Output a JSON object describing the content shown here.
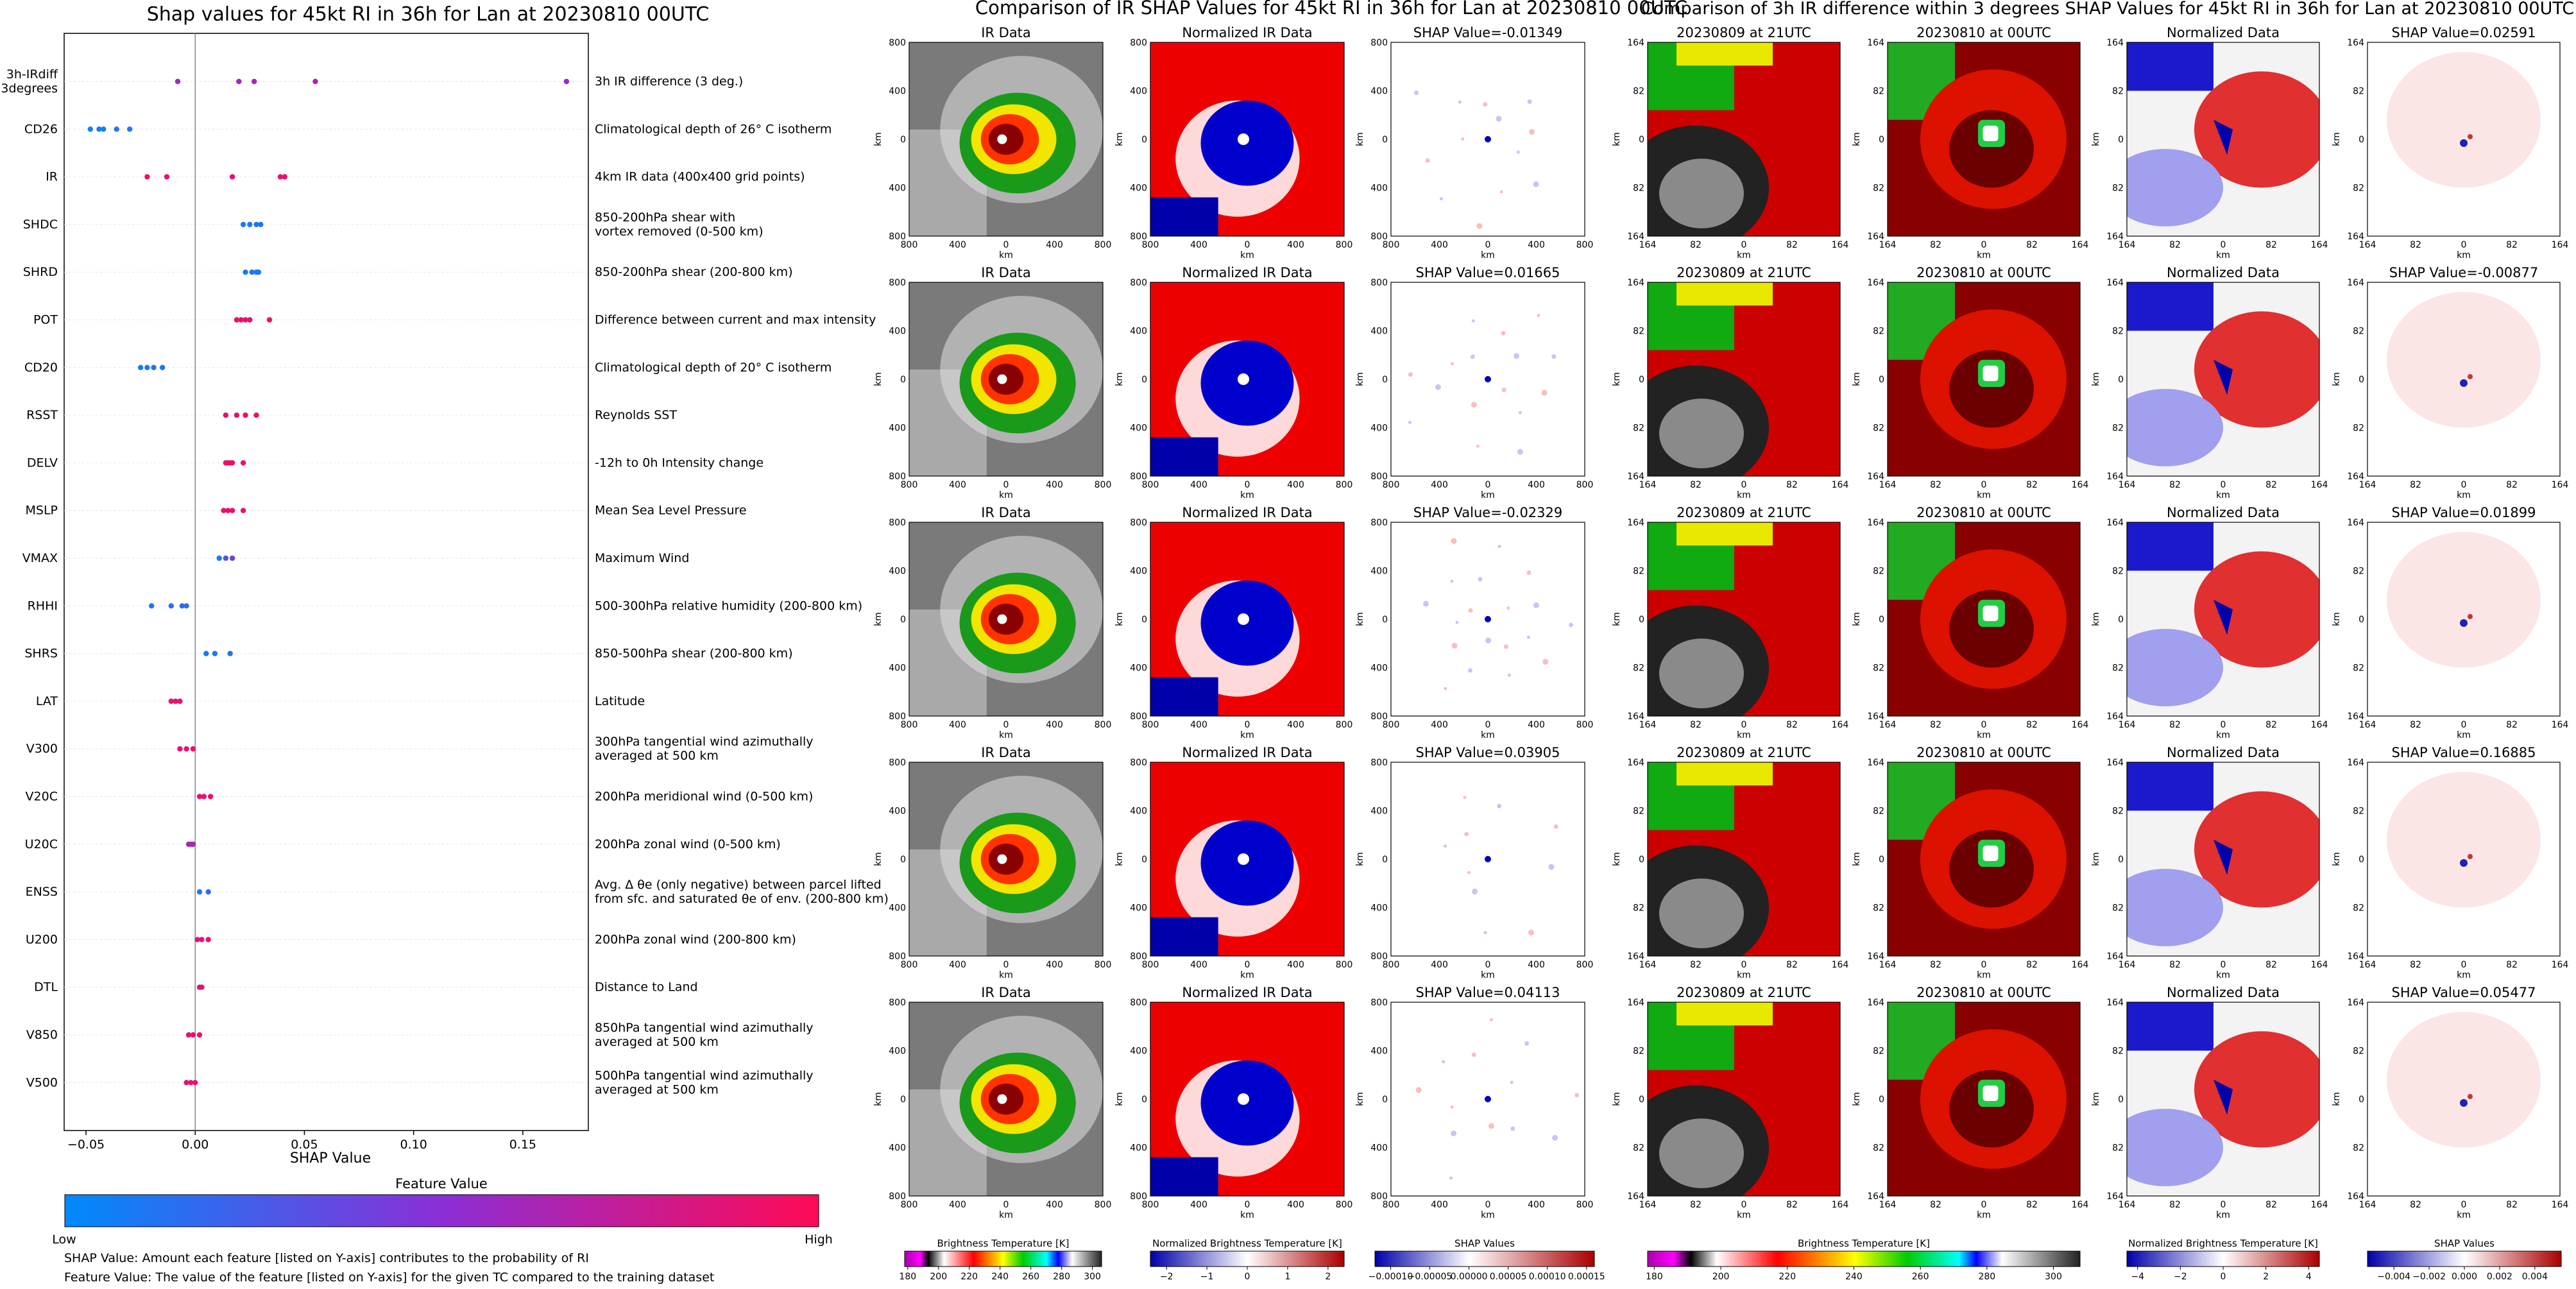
{
  "left": {
    "title": "Shap values for 45kt RI in 36h for Lan at 20230810 00UTC",
    "xlabel": "SHAP Value",
    "xticks": [
      "−0.05",
      "0.00",
      "0.05",
      "0.10",
      "0.15"
    ],
    "colorbar": {
      "title": "Feature Value",
      "low": "Low",
      "high": "High",
      "low_color": "#008afb",
      "mid_color": "#8b2fd6",
      "high_color": "#ff0a55"
    },
    "notes": [
      "SHAP Value: Amount each feature [listed on Y-axis] contributes to the probability of RI",
      "Feature Value: The value of the feature [listed on Y-axis] for the given TC compared to the training dataset"
    ]
  },
  "chart_data": [
    {
      "type": "scatter",
      "title": "Shap values for 45kt RI in 36h for Lan at 20230810 00UTC",
      "xlabel": "SHAP Value",
      "xlim": [
        -0.06,
        0.18
      ],
      "legend": "colorbar bottom",
      "features": [
        {
          "name": "3h-IRdiff\n3degrees",
          "desc": "3h IR difference (3 deg.)",
          "points": [
            [
              -0.008,
              0.55
            ],
            [
              0.02,
              0.6
            ],
            [
              0.027,
              0.62
            ],
            [
              0.055,
              0.65
            ],
            [
              0.17,
              0.55
            ]
          ]
        },
        {
          "name": "CD26",
          "desc": "Climatological depth of 26° C isotherm",
          "points": [
            [
              -0.048,
              0.05
            ],
            [
              -0.044,
              0.08
            ],
            [
              -0.042,
              0.06
            ],
            [
              -0.036,
              0.1
            ],
            [
              -0.03,
              0.12
            ]
          ]
        },
        {
          "name": "IR",
          "desc": "4km IR data (400x400 grid points)",
          "points": [
            [
              -0.022,
              0.95
            ],
            [
              -0.013,
              0.9
            ],
            [
              0.017,
              0.88
            ],
            [
              0.039,
              0.92
            ],
            [
              0.041,
              0.9
            ]
          ]
        },
        {
          "name": "SHDC",
          "desc": "850-200hPa shear with\nvortex removed (0-500 km)",
          "points": [
            [
              0.022,
              0.1
            ],
            [
              0.025,
              0.08
            ],
            [
              0.028,
              0.12
            ],
            [
              0.03,
              0.1
            ]
          ]
        },
        {
          "name": "SHRD",
          "desc": "850-200hPa shear (200-800 km)",
          "points": [
            [
              0.023,
              0.1
            ],
            [
              0.026,
              0.12
            ],
            [
              0.028,
              0.08
            ],
            [
              0.029,
              0.1
            ]
          ]
        },
        {
          "name": "POT",
          "desc": "Difference between current and max intensity",
          "points": [
            [
              0.019,
              0.92
            ],
            [
              0.021,
              0.9
            ],
            [
              0.023,
              0.88
            ],
            [
              0.025,
              0.9
            ],
            [
              0.034,
              0.95
            ]
          ]
        },
        {
          "name": "CD20",
          "desc": "Climatological depth of 20° C isotherm",
          "points": [
            [
              -0.025,
              0.08
            ],
            [
              -0.022,
              0.1
            ],
            [
              -0.019,
              0.12
            ],
            [
              -0.015,
              0.1
            ]
          ]
        },
        {
          "name": "RSST",
          "desc": "Reynolds SST",
          "points": [
            [
              0.014,
              0.92
            ],
            [
              0.019,
              0.9
            ],
            [
              0.023,
              0.95
            ],
            [
              0.028,
              0.9
            ]
          ]
        },
        {
          "name": "DELV",
          "desc": "-12h to 0h Intensity change",
          "points": [
            [
              0.014,
              0.95
            ],
            [
              0.015,
              0.92
            ],
            [
              0.016,
              0.9
            ],
            [
              0.017,
              0.93
            ],
            [
              0.022,
              0.9
            ]
          ]
        },
        {
          "name": "MSLP",
          "desc": "Mean Sea Level Pressure",
          "points": [
            [
              0.013,
              0.92
            ],
            [
              0.015,
              0.9
            ],
            [
              0.017,
              0.95
            ],
            [
              0.022,
              0.9
            ]
          ]
        },
        {
          "name": "VMAX",
          "desc": "Maximum Wind",
          "points": [
            [
              0.011,
              0.1
            ],
            [
              0.014,
              0.3
            ],
            [
              0.017,
              0.4
            ]
          ]
        },
        {
          "name": "RHHI",
          "desc": "500-300hPa relative humidity (200-800 km)",
          "points": [
            [
              -0.02,
              0.1
            ],
            [
              -0.011,
              0.15
            ],
            [
              -0.006,
              0.2
            ],
            [
              -0.004,
              0.15
            ]
          ]
        },
        {
          "name": "SHRS",
          "desc": "850-500hPa shear (200-800 km)",
          "points": [
            [
              0.005,
              0.1
            ],
            [
              0.009,
              0.12
            ],
            [
              0.016,
              0.15
            ]
          ]
        },
        {
          "name": "LAT",
          "desc": "Latitude",
          "points": [
            [
              -0.011,
              0.9
            ],
            [
              -0.009,
              0.95
            ],
            [
              -0.007,
              0.92
            ]
          ]
        },
        {
          "name": "V300",
          "desc": "300hPa tangential wind azimuthally\naveraged at 500 km",
          "points": [
            [
              -0.007,
              0.9
            ],
            [
              -0.004,
              0.88
            ],
            [
              -0.001,
              0.95
            ]
          ]
        },
        {
          "name": "V20C",
          "desc": "200hPa meridional wind (0-500 km)",
          "points": [
            [
              0.002,
              0.9
            ],
            [
              0.004,
              0.85
            ],
            [
              0.007,
              0.92
            ]
          ]
        },
        {
          "name": "U20C",
          "desc": "200hPa zonal wind (0-500 km)",
          "points": [
            [
              -0.003,
              0.6
            ],
            [
              -0.002,
              0.65
            ],
            [
              -0.001,
              0.62
            ]
          ]
        },
        {
          "name": "ENSS",
          "desc": "Avg. Δ θe (only negative) between parcel lifted\nfrom sfc. and saturated θe of env. (200-800 km)",
          "points": [
            [
              0.002,
              0.1
            ],
            [
              0.006,
              0.15
            ]
          ]
        },
        {
          "name": "U200",
          "desc": "200hPa zonal wind (200-800 km)",
          "points": [
            [
              0.001,
              0.9
            ],
            [
              0.003,
              0.85
            ],
            [
              0.006,
              0.9
            ]
          ]
        },
        {
          "name": "DTL",
          "desc": "Distance to Land",
          "points": [
            [
              0.002,
              0.9
            ],
            [
              0.003,
              0.88
            ]
          ]
        },
        {
          "name": "V850",
          "desc": "850hPa tangential wind azimuthally\naveraged at 500 km",
          "points": [
            [
              -0.003,
              0.9
            ],
            [
              -0.001,
              0.88
            ],
            [
              0.002,
              0.92
            ]
          ]
        },
        {
          "name": "V500",
          "desc": "500hPa tangential wind azimuthally\naveraged at 500 km",
          "points": [
            [
              -0.004,
              0.85
            ],
            [
              -0.002,
              0.9
            ],
            [
              0.0,
              0.88
            ]
          ]
        }
      ]
    },
    {
      "type": "heatmap",
      "title": "Comparison of IR SHAP Values for 45kt RI in 36h for Lan at 20230810 00UTC",
      "panel_titles": [
        "IR Data",
        "Normalized IR Data"
      ],
      "shap_values": [
        "-0.01349",
        "0.01665",
        "-0.02329",
        "0.03905",
        "0.04113"
      ],
      "ticks": [
        "800",
        "400",
        "0",
        "400",
        "800"
      ],
      "axis_label": "km",
      "colorbars": [
        {
          "label": "Brightness Temperature [K]",
          "ticks": [
            "180",
            "200",
            "220",
            "240",
            "260",
            "280",
            "300"
          ],
          "range": [
            178,
            306
          ]
        },
        {
          "label": "Normalized Brightness Temperature [K]",
          "ticks": [
            "−2",
            "−1",
            "0",
            "1",
            "2"
          ],
          "range": [
            -2.4,
            2.4
          ]
        },
        {
          "label": "SHAP Values",
          "ticks": [
            "−0.00010",
            "−0.00005",
            "0.00000",
            "0.00005",
            "0.00010",
            "0.00015"
          ],
          "range": [
            -0.00012,
            0.00016
          ]
        }
      ]
    },
    {
      "type": "heatmap",
      "title": "Comparison of 3h IR difference within 3 degrees SHAP Values for 45kt RI in 36h for Lan at 20230810 00UTC",
      "panel_titles": [
        "20230809 at 21UTC",
        "20230810 at 00UTC",
        "Normalized Data"
      ],
      "shap_values": [
        "0.02591",
        "-0.00877",
        "0.01899",
        "0.16885",
        "0.05477"
      ],
      "ticks": [
        "164",
        "82",
        "0",
        "82",
        "164"
      ],
      "axis_label": "km",
      "colorbars": [
        {
          "label": "Brightness Temperature [K]",
          "ticks": [
            "180",
            "200",
            "220",
            "240",
            "260",
            "280",
            "300"
          ],
          "range": [
            178,
            308
          ]
        },
        {
          "label": "Normalized Brightness Temperature [K]",
          "ticks": [
            "−4",
            "−2",
            "0",
            "2",
            "4"
          ],
          "range": [
            -4.5,
            4.5
          ]
        },
        {
          "label": "SHAP Values",
          "ticks": [
            "−0.004",
            "−0.002",
            "0.000",
            "0.002",
            "0.004"
          ],
          "range": [
            -0.0055,
            0.0055
          ]
        }
      ]
    }
  ],
  "colors": {
    "feature_low": "#008afb",
    "feature_high": "#ff0a55",
    "bwr_blue": "#0000cc",
    "bwr_red": "#dd0000"
  }
}
